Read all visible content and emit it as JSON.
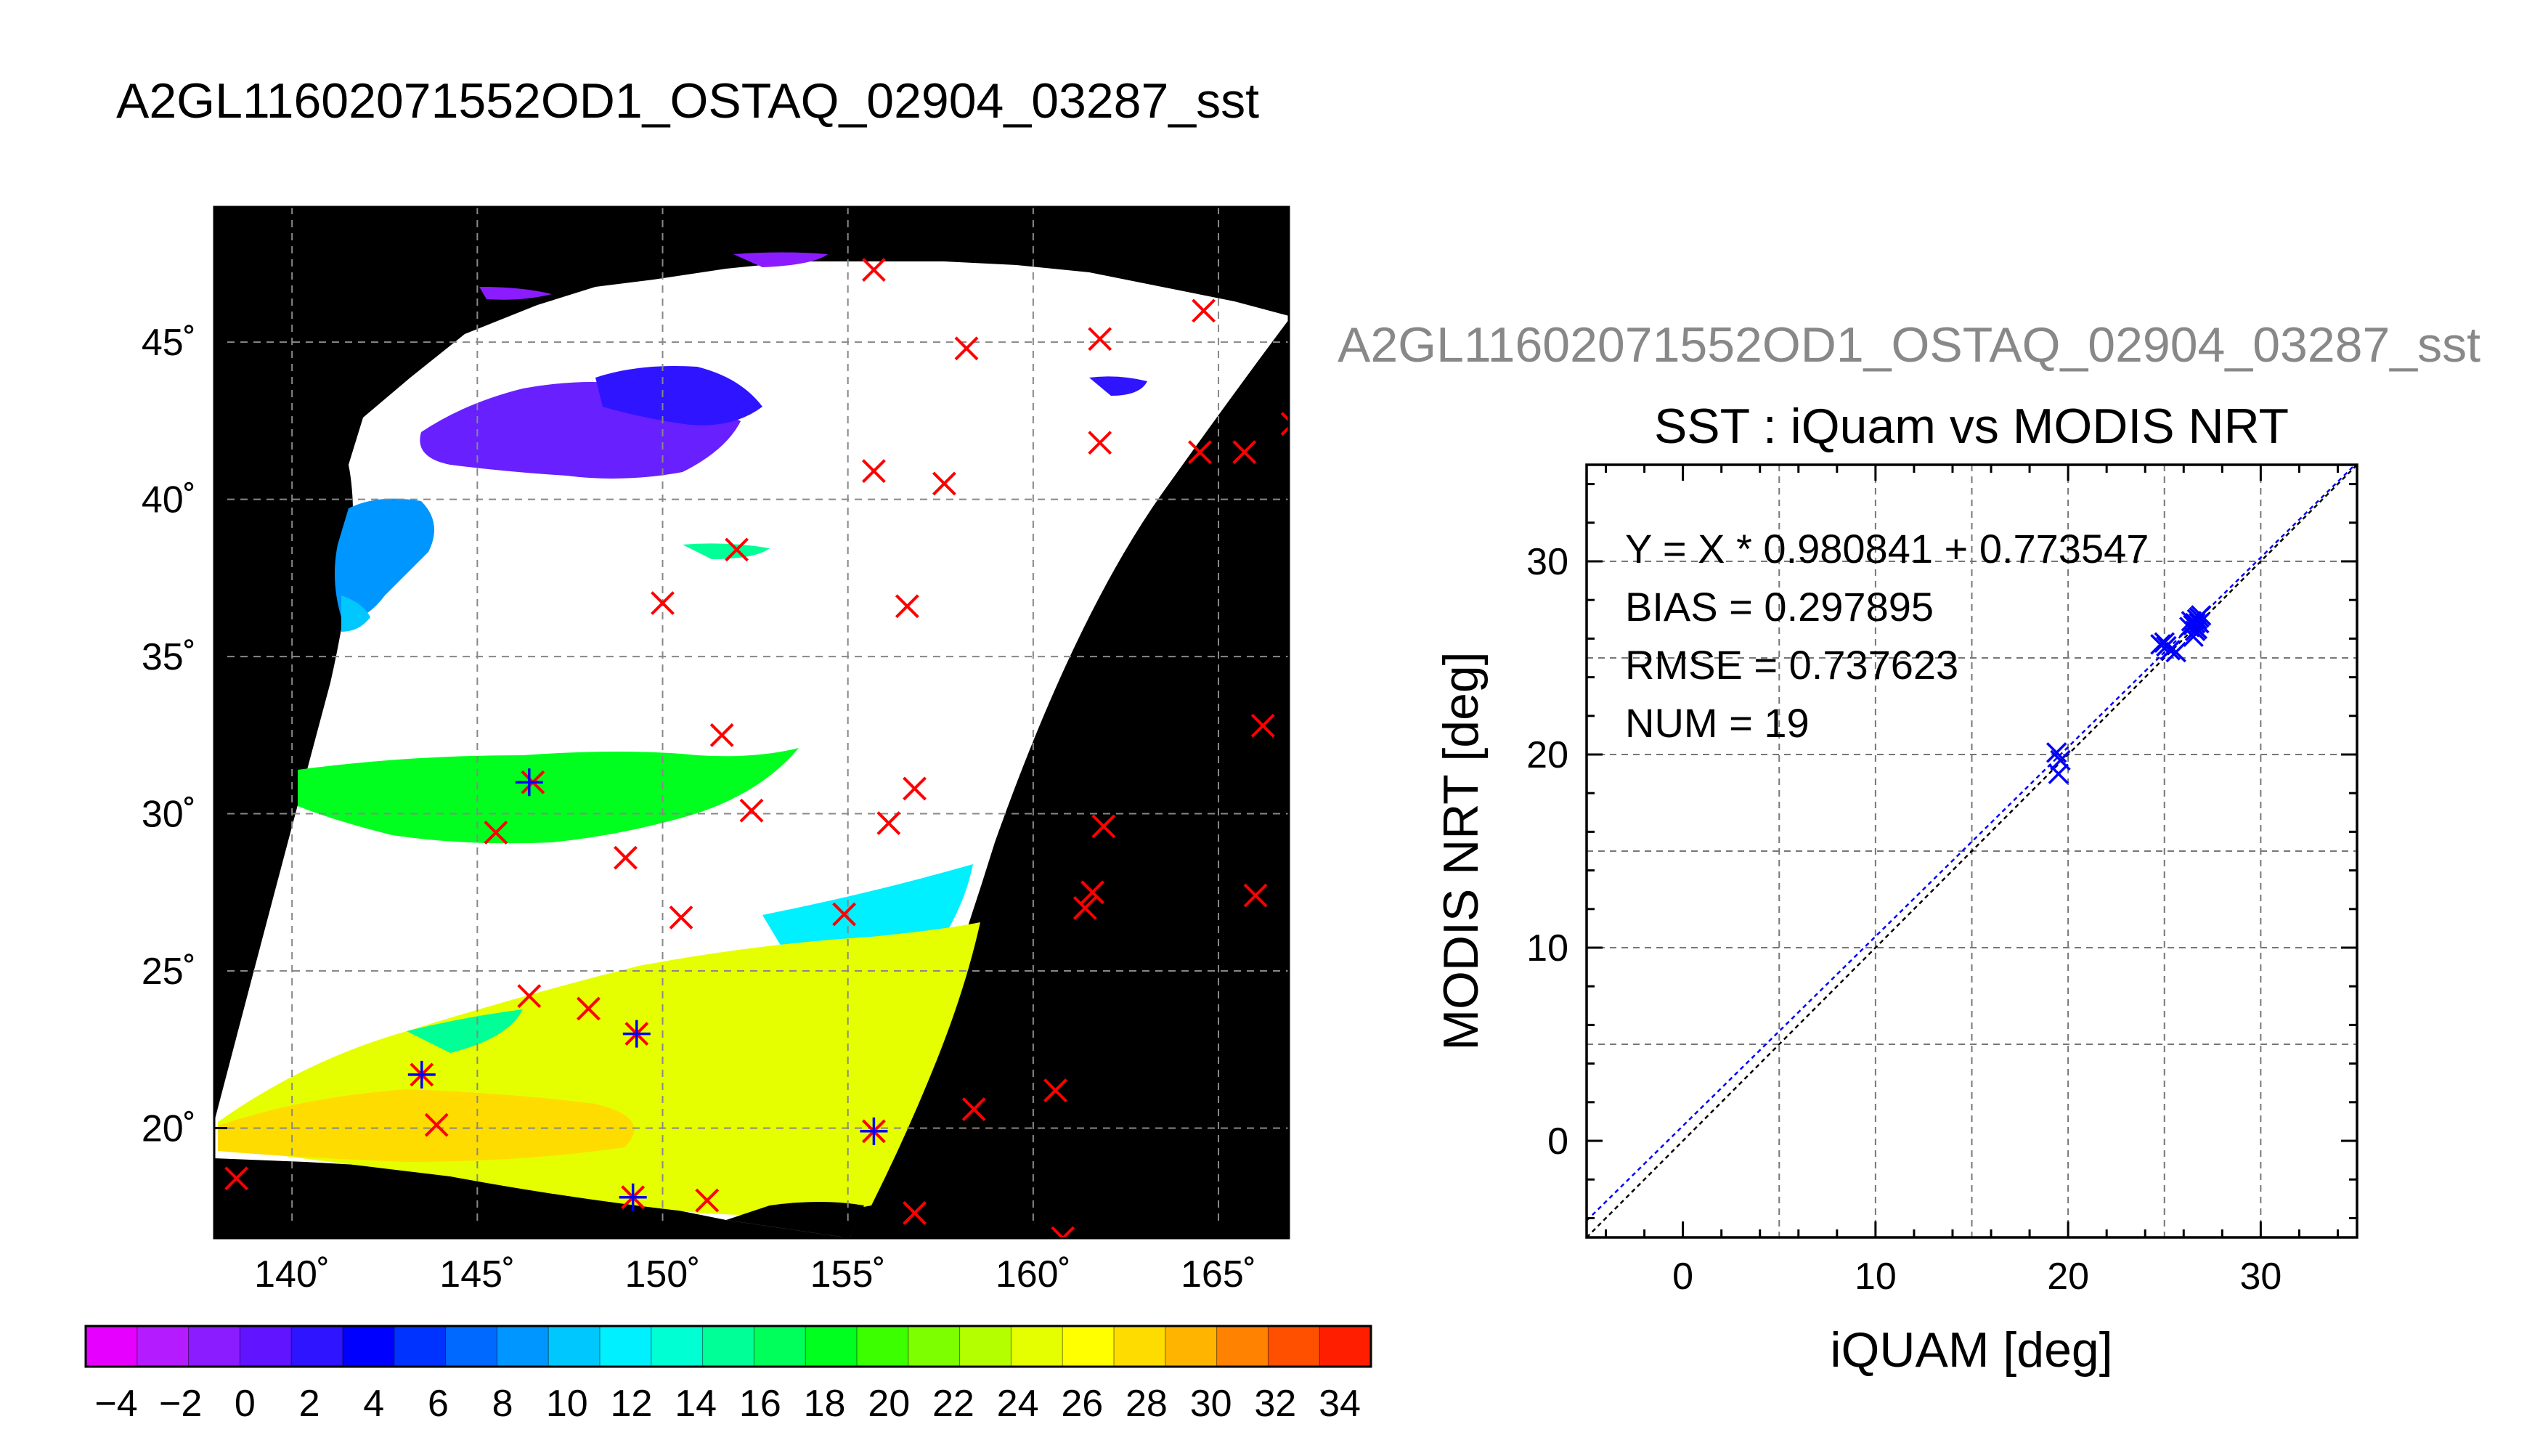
{
  "page": {
    "title": "A2GL11602071552OD1_OSTAQ_02904_03287_sst",
    "subtitle": "A2GL11602071552OD1_OSTAQ_02904_03287_sst"
  },
  "map": {
    "lon_ticks": [
      "140˚",
      "145˚",
      "150˚",
      "155˚",
      "160˚",
      "165˚"
    ],
    "lat_ticks": [
      "45˚",
      "40˚",
      "35˚",
      "30˚",
      "25˚",
      "20˚"
    ],
    "lon_values": [
      140,
      145,
      150,
      155,
      160,
      165
    ],
    "lat_values": [
      45,
      40,
      35,
      30,
      25,
      20
    ],
    "lon_range": [
      137.9,
      166.9
    ],
    "lat_range": [
      16.5,
      49.3
    ],
    "background_color": "#000000",
    "cloud_color": "#ffffff",
    "marker_color": "#ff0000",
    "match_marker_color": "#0000ff",
    "insitu_markers": [
      [
        138.5,
        18.4
      ],
      [
        143.5,
        21.7
      ],
      [
        143.9,
        20.1
      ],
      [
        146.4,
        24.2
      ],
      [
        148.0,
        23.8
      ],
      [
        149.3,
        23.0
      ],
      [
        149.2,
        17.8
      ],
      [
        151.2,
        17.7
      ],
      [
        155.7,
        19.9
      ],
      [
        156.8,
        17.3
      ],
      [
        155.7,
        47.3
      ],
      [
        158.2,
        44.8
      ],
      [
        161.8,
        45.1
      ],
      [
        164.6,
        46.0
      ],
      [
        161.8,
        41.8
      ],
      [
        164.5,
        41.5
      ],
      [
        165.7,
        41.5
      ],
      [
        167.0,
        42.4
      ],
      [
        155.7,
        40.9
      ],
      [
        157.6,
        40.5
      ],
      [
        152.0,
        38.4
      ],
      [
        150.0,
        36.7
      ],
      [
        156.6,
        36.6
      ],
      [
        151.6,
        32.5
      ],
      [
        152.4,
        30.1
      ],
      [
        156.8,
        30.8
      ],
      [
        156.1,
        29.7
      ],
      [
        146.5,
        31.0
      ],
      [
        145.5,
        29.4
      ],
      [
        149.0,
        28.6
      ],
      [
        150.5,
        26.7
      ],
      [
        154.9,
        26.8
      ],
      [
        161.9,
        29.6
      ],
      [
        161.6,
        27.5
      ],
      [
        161.4,
        27.0
      ],
      [
        166.2,
        32.8
      ],
      [
        166.0,
        27.4
      ],
      [
        158.4,
        20.6
      ],
      [
        160.6,
        21.2
      ],
      [
        160.8,
        16.5
      ]
    ],
    "matchup_markers": [
      [
        143.5,
        21.7
      ],
      [
        146.4,
        31.0
      ],
      [
        149.3,
        23.0
      ],
      [
        149.2,
        17.8
      ],
      [
        155.7,
        19.9
      ]
    ]
  },
  "colorbar": {
    "labels": [
      "−4",
      "−2",
      "0",
      "2",
      "4",
      "6",
      "8",
      "10",
      "12",
      "14",
      "16",
      "18",
      "20",
      "22",
      "24",
      "26",
      "28",
      "30",
      "32",
      "34"
    ],
    "colors": [
      "#e600ff",
      "#b41cff",
      "#8b1cff",
      "#6014ff",
      "#2e14ff",
      "#0000ff",
      "#0033ff",
      "#0069ff",
      "#0096ff",
      "#00c8ff",
      "#00f0ff",
      "#00ffd2",
      "#00ff96",
      "#00ff5a",
      "#00ff1e",
      "#3cff00",
      "#7dff00",
      "#b4ff00",
      "#e6ff00",
      "#ffff00",
      "#ffdc00",
      "#ffb400",
      "#ff8200",
      "#ff5000",
      "#ff1e00"
    ]
  },
  "chart_data": {
    "type": "scatter",
    "title": "SST : iQuam vs MODIS NRT",
    "xlabel": "iQUAM [deg]",
    "ylabel": "MODIS NRT [deg]",
    "xlim": [
      -5,
      35
    ],
    "ylim": [
      -5,
      35
    ],
    "x_ticks": [
      0,
      10,
      20,
      30
    ],
    "y_ticks": [
      0,
      10,
      20,
      30
    ],
    "grid": true,
    "stats": [
      "Y = X * 0.980841 + 0.773547",
      "BIAS = 0.297895",
      "RMSE = 0.737623",
      "NUM = 19"
    ],
    "regression": {
      "slope": 0.980841,
      "intercept": 0.773547
    },
    "points": [
      {
        "x": 19.4,
        "y": 20.1
      },
      {
        "x": 19.5,
        "y": 19.0
      },
      {
        "x": 19.6,
        "y": 19.7
      },
      {
        "x": 24.8,
        "y": 25.7
      },
      {
        "x": 25.0,
        "y": 25.8
      },
      {
        "x": 25.1,
        "y": 25.6
      },
      {
        "x": 25.3,
        "y": 25.4
      },
      {
        "x": 25.6,
        "y": 25.3
      },
      {
        "x": 26.5,
        "y": 26.7
      },
      {
        "x": 26.6,
        "y": 26.4
      },
      {
        "x": 26.7,
        "y": 27.0
      },
      {
        "x": 26.8,
        "y": 26.8
      },
      {
        "x": 26.9,
        "y": 27.2
      },
      {
        "x": 26.5,
        "y": 26.1
      },
      {
        "x": 26.3,
        "y": 26.6
      },
      {
        "x": 26.4,
        "y": 26.9
      },
      {
        "x": 26.7,
        "y": 26.5
      },
      {
        "x": 26.8,
        "y": 27.1
      },
      {
        "x": 26.6,
        "y": 26.8
      }
    ],
    "point_color": "#0000ff",
    "line_color": "#0000ff",
    "identity_color": "#000000"
  }
}
